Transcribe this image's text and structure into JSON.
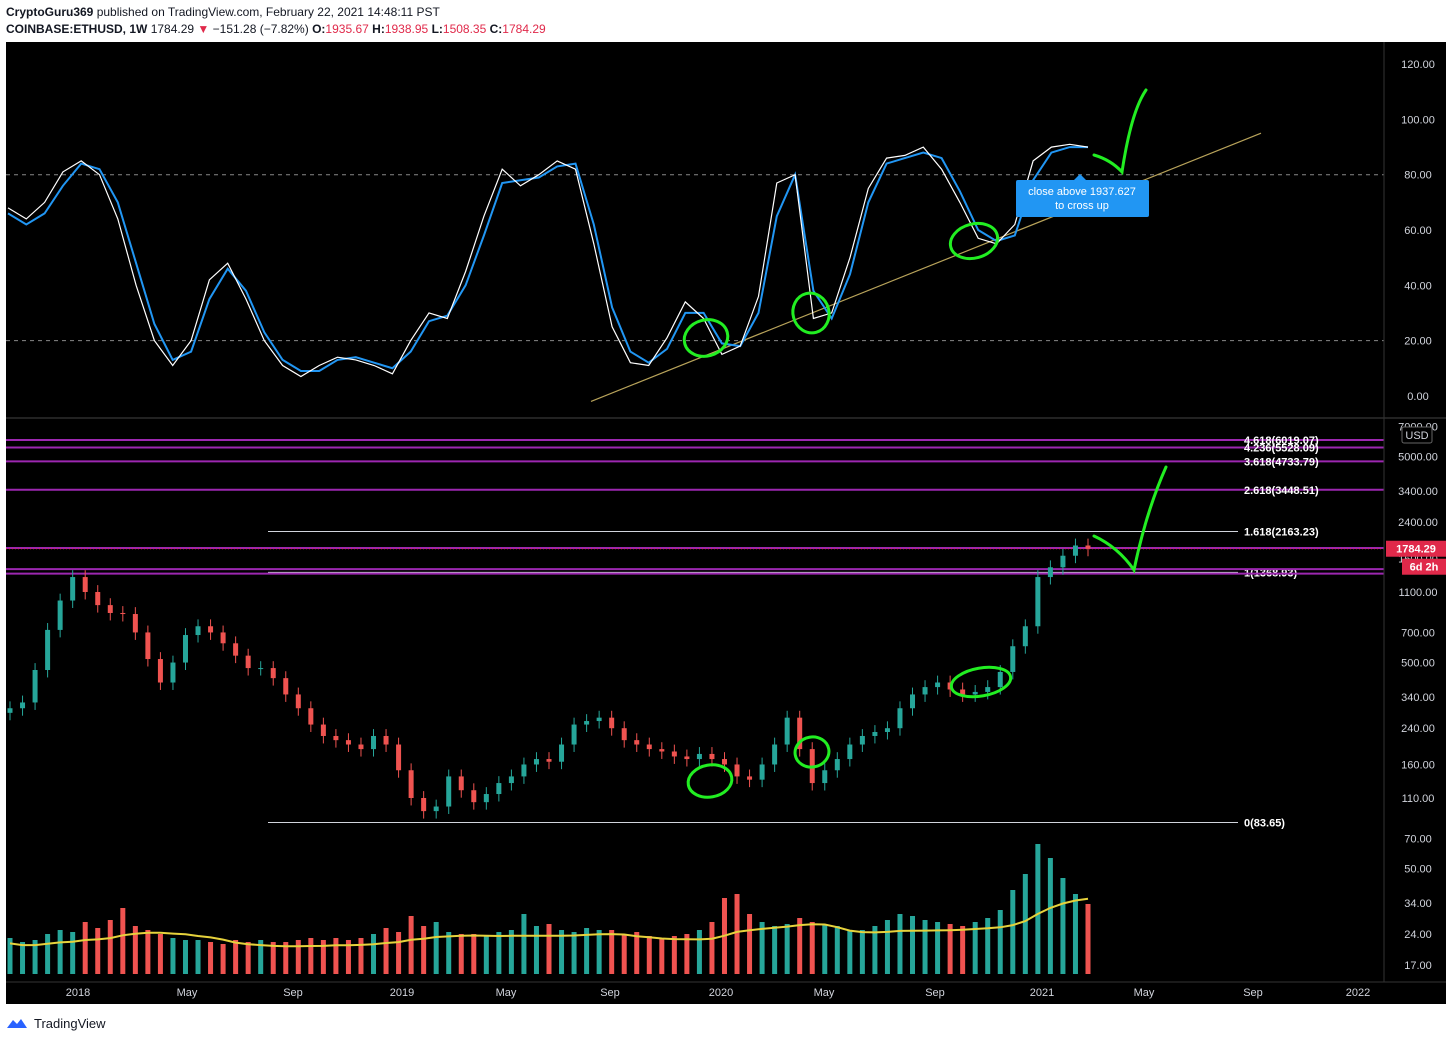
{
  "header": {
    "author": "CryptoGuru369",
    "published_text": "published on TradingView.com, February 22, 2021 14:48:11 PST",
    "symbol": "COINBASE:ETHUSD",
    "interval": "1W",
    "last": "1784.29",
    "change": "−151.28 (−7.82%)",
    "o_label": "O:",
    "o": "1935.67",
    "h_label": "H:",
    "h": "1938.95",
    "l_label": "L:",
    "l": "1508.35",
    "c_label": "C:",
    "c": "1784.29"
  },
  "footer": {
    "brand": "TradingView"
  },
  "colors": {
    "up": "#26a69a",
    "down": "#ef5350",
    "bg": "#000000",
    "k_line": "#ffffff",
    "d_line": "#2196f3",
    "fib": "#9c27b0",
    "trend": "#b8a35a",
    "annot": "#22ee22",
    "vol_ma": "#e6d23c",
    "price_label": "#e0294a",
    "callout": "#2196f3"
  },
  "chart_data": [
    {
      "type": "line",
      "name": "stochastic_rsi",
      "yticks": [
        "120.00",
        "100.00",
        "80.00",
        "60.00",
        "40.00",
        "20.00",
        "0.00"
      ],
      "ylim": [
        -8,
        128
      ],
      "levels": [
        80,
        20
      ],
      "k": [
        68,
        64,
        70,
        81,
        85,
        80,
        64,
        40,
        20,
        11,
        20,
        42,
        48,
        35,
        20,
        11,
        7,
        11,
        14,
        13,
        11,
        8,
        20,
        30,
        28,
        45,
        65,
        82,
        76,
        80,
        85,
        82,
        55,
        25,
        12,
        11,
        21,
        34,
        28,
        15,
        18,
        36,
        77,
        80,
        28,
        30,
        50,
        75,
        86,
        87,
        90,
        82,
        70,
        57,
        55,
        62,
        85,
        90,
        91,
        90
      ],
      "d": [
        66,
        62,
        66,
        76,
        84,
        82,
        70,
        48,
        26,
        13,
        16,
        35,
        46,
        38,
        23,
        13,
        9,
        9,
        13,
        14,
        12,
        10,
        16,
        27,
        29,
        40,
        58,
        77,
        78,
        79,
        83,
        84,
        62,
        32,
        16,
        12,
        17,
        30,
        30,
        19,
        18,
        30,
        65,
        80,
        38,
        28,
        44,
        70,
        84,
        86,
        88,
        86,
        74,
        60,
        56,
        58,
        78,
        88,
        90,
        90
      ],
      "trend_line": [
        {
          "x": 0,
          "y": -2
        },
        {
          "x": 1,
          "y": 95
        }
      ],
      "callout": {
        "text1": "close above 1937.627",
        "text2": "to cross up"
      }
    },
    {
      "type": "candlestick",
      "name": "ETHUSD weekly",
      "currency": "USD",
      "x_ticks": [
        "2018",
        "May",
        "Sep",
        "2019",
        "May",
        "Sep",
        "2020",
        "May",
        "Sep",
        "2021",
        "May",
        "Sep",
        "2022"
      ],
      "y_ticks": [
        "7000.00",
        "5000.00",
        "3400.00",
        "2400.00",
        "1600.00",
        "1100.00",
        "700.00",
        "500.00",
        "340.00",
        "240.00",
        "160.00",
        "110.00",
        "70.00",
        "50.00",
        "34.00",
        "24.00",
        "17.00"
      ],
      "last_price": "1784.29",
      "countdown": "6d 2h",
      "closes": [
        300,
        320,
        460,
        720,
        1000,
        1300,
        1100,
        950,
        870,
        860,
        700,
        520,
        400,
        500,
        680,
        750,
        700,
        620,
        540,
        470,
        470,
        420,
        350,
        300,
        250,
        220,
        210,
        200,
        190,
        220,
        200,
        150,
        110,
        95,
        100,
        140,
        120,
        105,
        115,
        130,
        140,
        160,
        170,
        165,
        200,
        250,
        260,
        270,
        240,
        210,
        200,
        190,
        185,
        175,
        170,
        180,
        170,
        160,
        140,
        135,
        160,
        200,
        270,
        190,
        130,
        150,
        170,
        200,
        220,
        230,
        240,
        300,
        350,
        380,
        400,
        370,
        350,
        360,
        380,
        450,
        600,
        750,
        1300,
        1450,
        1650,
        1850,
        1784
      ],
      "fib_levels": [
        {
          "label": "4.618(6019.07)",
          "value": 6019.07
        },
        {
          "label": "4.236(5528.09)",
          "value": 5528.09
        },
        {
          "label": "3.618(4733.79)",
          "value": 4733.79
        },
        {
          "label": "2.618(3448.51)",
          "value": 3448.51
        },
        {
          "label": "1.618(2163.23)",
          "value": 2163.23
        },
        {
          "label": "1(1368.93)",
          "value": 1368.93
        },
        {
          "label": "0(83.65)",
          "value": 83.65
        }
      ]
    },
    {
      "type": "bar",
      "name": "volume",
      "values": [
        18,
        16,
        17,
        20,
        22,
        21,
        26,
        23,
        27,
        33,
        24,
        22,
        20,
        18,
        17,
        17,
        16,
        15,
        17,
        16,
        17,
        16,
        16,
        17,
        18,
        17,
        18,
        17,
        18,
        20,
        23,
        21,
        29,
        24,
        26,
        21,
        20,
        20,
        19,
        21,
        22,
        30,
        24,
        25,
        22,
        21,
        23,
        22,
        22,
        20,
        21,
        19,
        18,
        19,
        20,
        22,
        26,
        38,
        40,
        30,
        26,
        24,
        25,
        28,
        26,
        25,
        24,
        22,
        22,
        24,
        27,
        30,
        29,
        27,
        26,
        25,
        24,
        26,
        28,
        32,
        42,
        50,
        65,
        58,
        48,
        40,
        35
      ]
    }
  ]
}
